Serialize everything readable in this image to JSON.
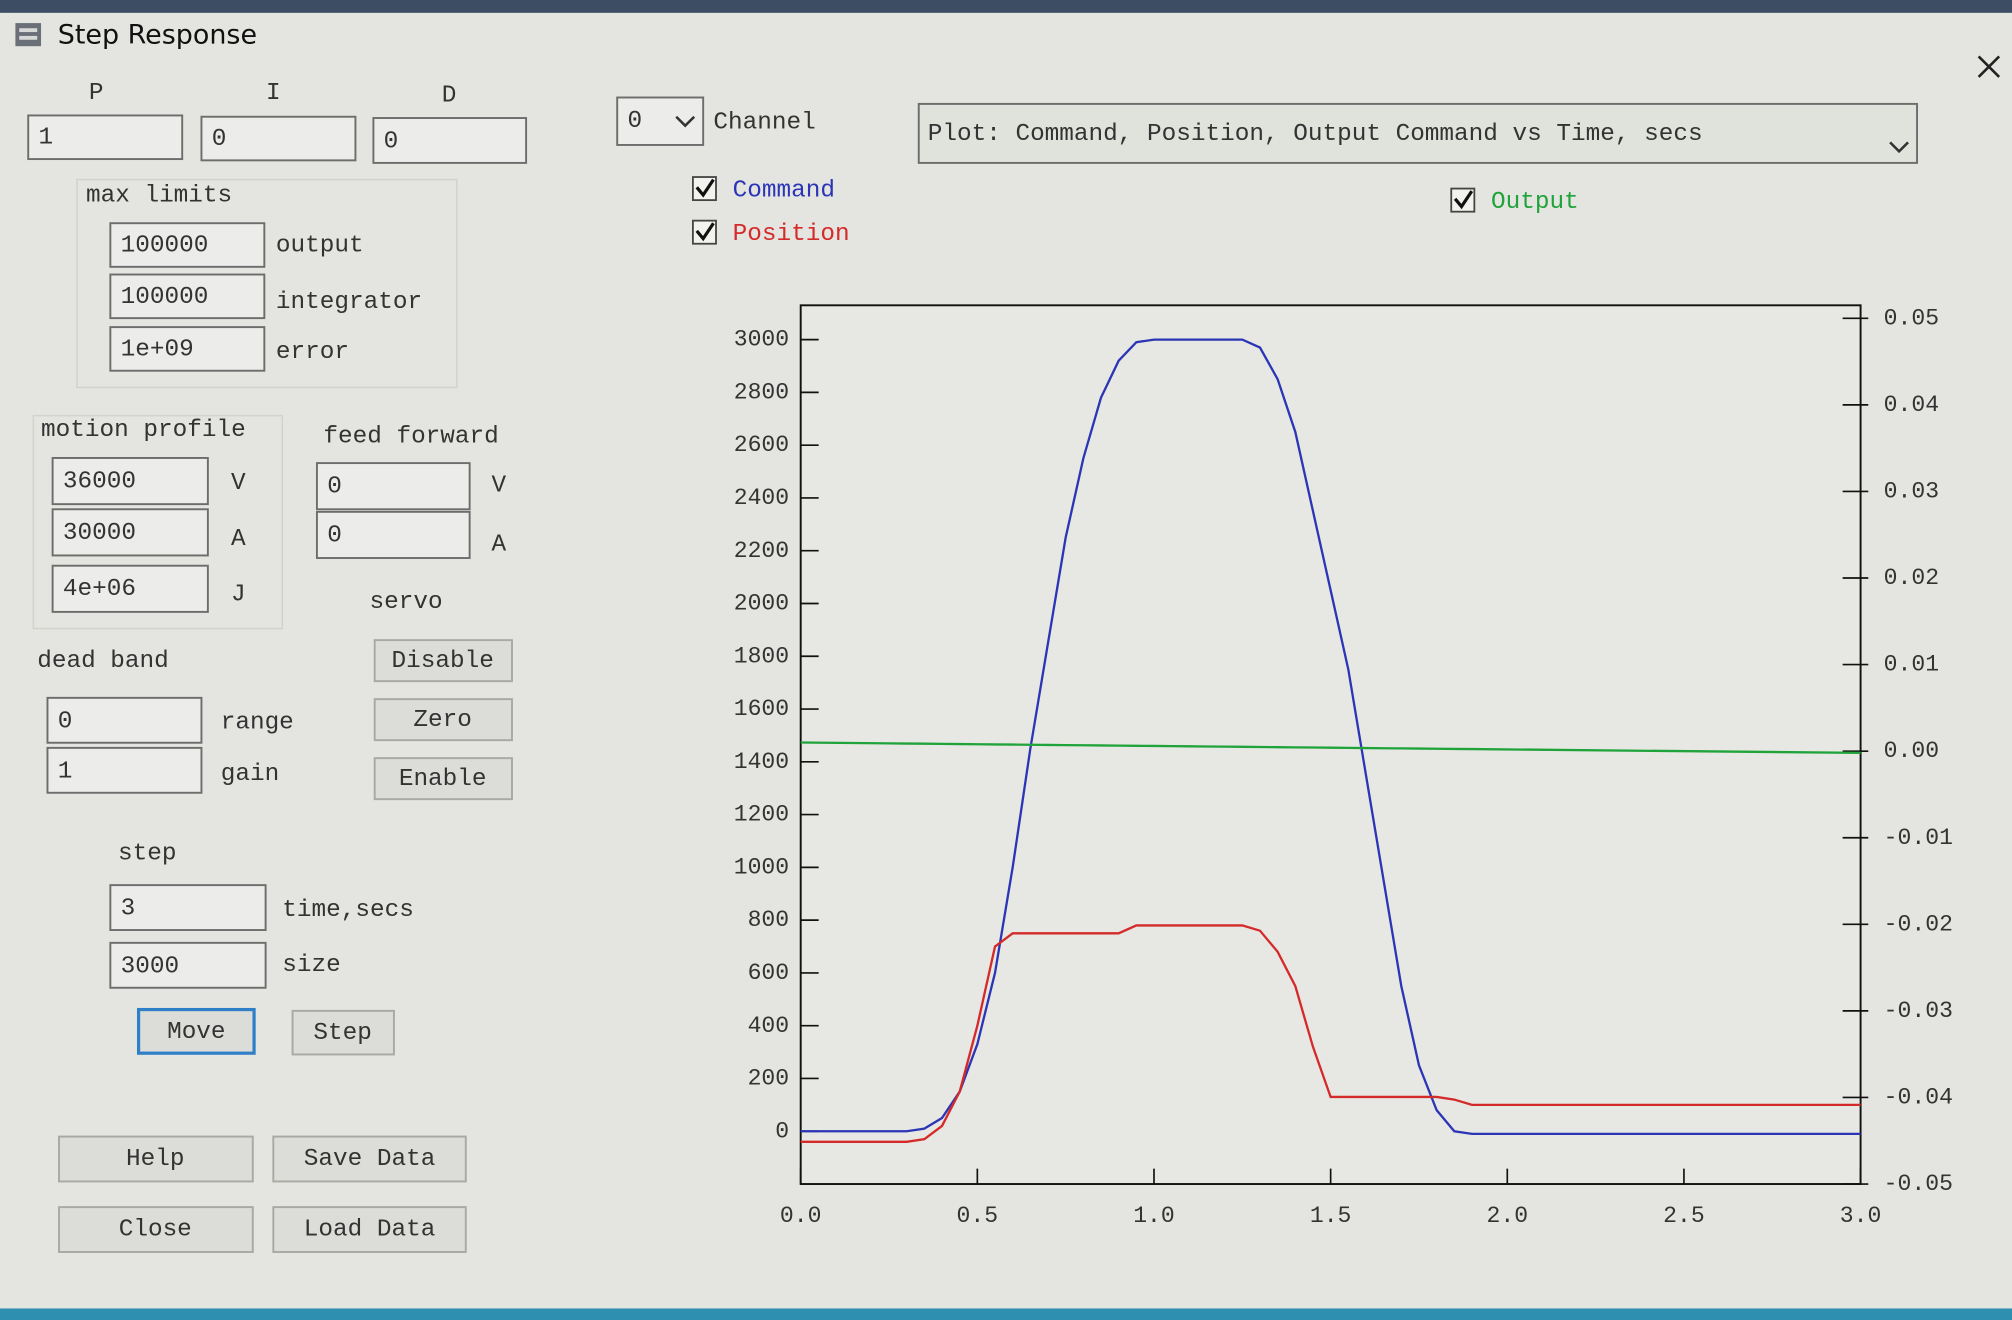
{
  "window": {
    "title": "Step Response"
  },
  "pid": {
    "labels": [
      "P",
      "I",
      "D"
    ],
    "values": [
      "1",
      "0",
      "0"
    ]
  },
  "max_limits": {
    "title": "max limits",
    "fields": [
      {
        "value": "100000",
        "label": "output"
      },
      {
        "value": "100000",
        "label": "integrator"
      },
      {
        "value": "1e+09",
        "label": "error"
      }
    ]
  },
  "motion_profile": {
    "title": "motion profile",
    "fields": [
      {
        "value": "36000",
        "label": "V"
      },
      {
        "value": "30000",
        "label": "A"
      },
      {
        "value": "4e+06",
        "label": "J"
      }
    ]
  },
  "feed_forward": {
    "title": "feed forward",
    "fields": [
      {
        "value": "0",
        "label": "V"
      },
      {
        "value": "0",
        "label": "A"
      }
    ]
  },
  "servo": {
    "title": "servo",
    "buttons": [
      "Disable",
      "Zero",
      "Enable"
    ]
  },
  "dead_band": {
    "title": "dead band",
    "fields": [
      {
        "value": "0",
        "label": "range"
      },
      {
        "value": "1",
        "label": "gain"
      }
    ]
  },
  "step": {
    "title": "step",
    "fields": [
      {
        "value": "3",
        "label": "time,secs"
      },
      {
        "value": "3000",
        "label": "size"
      }
    ],
    "buttons": [
      "Move",
      "Step"
    ]
  },
  "bottom_buttons": [
    "Help",
    "Save Data",
    "Close",
    "Load Data"
  ],
  "channel": {
    "value": "0",
    "label": "Channel"
  },
  "plot_select": "Plot: Command, Position, Output Command vs Time, secs",
  "chart_data": {
    "type": "line",
    "x": [
      0,
      0.3,
      0.35,
      0.4,
      0.45,
      0.5,
      0.55,
      0.6,
      0.65,
      0.7,
      0.75,
      0.8,
      0.85,
      0.9,
      0.95,
      1.0,
      1.05,
      1.1,
      1.15,
      1.2,
      1.25,
      1.3,
      1.35,
      1.4,
      1.45,
      1.5,
      1.55,
      1.6,
      1.65,
      1.7,
      1.75,
      1.8,
      1.85,
      1.9,
      3.0
    ],
    "series": [
      {
        "name": "Command",
        "color": "#2b35b5",
        "values": [
          0,
          0,
          10,
          50,
          150,
          330,
          600,
          1000,
          1450,
          1850,
          2250,
          2550,
          2780,
          2920,
          2990,
          3000,
          3000,
          3000,
          3000,
          3000,
          3000,
          2970,
          2850,
          2650,
          2350,
          2050,
          1750,
          1350,
          950,
          550,
          250,
          80,
          0,
          -10,
          -10
        ]
      },
      {
        "name": "Position",
        "color": "#d42a2a",
        "values": [
          -40,
          -40,
          -30,
          20,
          150,
          400,
          700,
          750,
          750,
          750,
          750,
          750,
          750,
          750,
          780,
          780,
          780,
          780,
          780,
          780,
          780,
          760,
          680,
          550,
          320,
          130,
          130,
          130,
          130,
          130,
          130,
          130,
          120,
          100,
          100
        ]
      },
      {
        "name": "Output",
        "color": "#1fa33a",
        "axis": "y2",
        "values": [
          0.001,
          0.00088,
          0.00086,
          0.00084,
          0.00082,
          0.0008,
          0.00078,
          0.00076,
          0.00074,
          0.00072,
          0.0007,
          0.00068,
          0.00066,
          0.00064,
          0.00062,
          0.0006,
          0.00058,
          0.00056,
          0.00054,
          0.00052,
          0.0005,
          0.00048,
          0.00046,
          0.00044,
          0.00042,
          0.0004,
          0.00038,
          0.00036,
          0.00034,
          0.00032,
          0.0003,
          0.00028,
          0.00026,
          0.00024,
          -0.0002
        ]
      }
    ],
    "xlim": [
      0,
      3
    ],
    "xticks": [
      {
        "value": 0,
        "label": "0.0"
      },
      0.5,
      {
        "value": 1,
        "label": "1.0"
      },
      1.5,
      {
        "value": 2,
        "label": "2.0"
      },
      2.5,
      {
        "value": 3,
        "label": "3.0"
      }
    ],
    "ylim": [
      -200,
      3130
    ],
    "yticks": [
      0,
      200,
      400,
      600,
      800,
      1000,
      1200,
      1400,
      1600,
      1800,
      2000,
      2200,
      2400,
      2600,
      2800,
      3000
    ],
    "y2lim": [
      -0.05,
      0.0515
    ],
    "y2ticks": [
      -0.05,
      -0.04,
      -0.03,
      -0.02,
      -0.01,
      {
        "value": 0,
        "label": "0.00"
      },
      0.01,
      0.02,
      0.03,
      0.04,
      0.05
    ]
  }
}
